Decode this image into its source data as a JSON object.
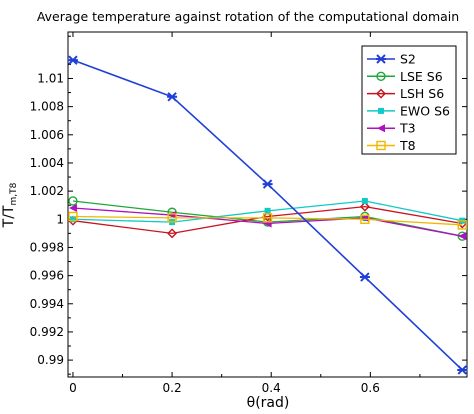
{
  "chart_data": {
    "type": "line",
    "title": "Average temperature against rotation of the computational domain",
    "xlabel": "θ(rad)",
    "ylabel_main": "T/T",
    "ylabel_sub": "m,T8",
    "xlim": [
      -0.01,
      0.795
    ],
    "ylim": [
      0.9888,
      1.0133
    ],
    "x_ticks": [
      "0",
      "0.2",
      "0.4",
      "0.6"
    ],
    "y_ticks": [
      "0.99",
      "0.992",
      "0.994",
      "0.996",
      "0.998",
      "1",
      "1.002",
      "1.004",
      "1.006",
      "1.008",
      "1.01"
    ],
    "x": [
      0,
      0.2,
      0.3927,
      0.589,
      0.7854
    ],
    "legend_position": "top-right",
    "grid": false,
    "series": [
      {
        "name": "S2",
        "color": "#1f3fd9",
        "marker": "asterisk",
        "values": [
          1.0113,
          1.0087,
          1.0025,
          0.9959,
          0.9893
        ]
      },
      {
        "name": "LSE S6",
        "color": "#1fa838",
        "marker": "circle",
        "values": [
          1.0013,
          1.0005,
          0.9998,
          1.0002,
          0.9988
        ]
      },
      {
        "name": "LSH S6",
        "color": "#c8141e",
        "marker": "diamond",
        "values": [
          0.9999,
          0.999,
          1.0002,
          1.0009,
          0.9997
        ]
      },
      {
        "name": "EWO S6",
        "color": "#12c9c9",
        "marker": "square-filled",
        "values": [
          1.0,
          0.9998,
          1.0006,
          1.0013,
          0.9999
        ]
      },
      {
        "name": "T3",
        "color": "#b010c0",
        "marker": "triangle-left",
        "values": [
          1.0008,
          1.0003,
          0.9997,
          1.0001,
          0.9988
        ]
      },
      {
        "name": "T8",
        "color": "#f0b800",
        "marker": "square-open",
        "values": [
          1.0002,
          1.0001,
          1.0001,
          1.0,
          0.9996
        ]
      }
    ]
  }
}
